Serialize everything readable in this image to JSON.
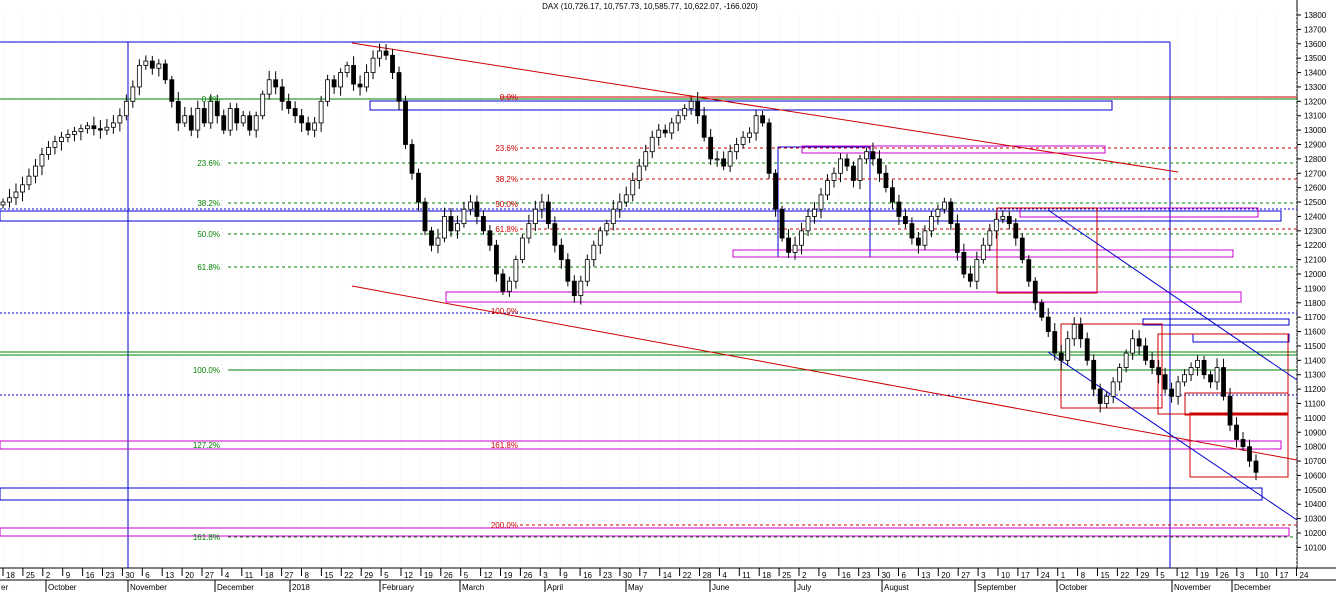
{
  "chart_data": {
    "type": "candlestick",
    "title": "DAX (10,726.17, 10,757.73, 10,585.77, 10,622.07, -166.020)",
    "ylim": [
      10100,
      13900
    ],
    "y_ticks": [
      10100,
      10200,
      10300,
      10400,
      10500,
      10600,
      10700,
      10800,
      10900,
      11000,
      11100,
      11200,
      11300,
      11400,
      11500,
      11600,
      11700,
      11800,
      11900,
      12000,
      12100,
      12200,
      12300,
      12400,
      12500,
      12600,
      12700,
      12800,
      12900,
      13000,
      13100,
      13200,
      13300,
      13400,
      13500,
      13600,
      13700,
      13800
    ],
    "date_ticks": [
      "18",
      "25",
      "2",
      "9",
      "16",
      "23",
      "30",
      "6",
      "13",
      "20",
      "27",
      "4",
      "11",
      "18",
      "27",
      "8",
      "15",
      "22",
      "29",
      "5",
      "12",
      "19",
      "26",
      "5",
      "12",
      "19",
      "26",
      "3",
      "9",
      "16",
      "23",
      "30",
      "7",
      "14",
      "22",
      "28",
      "4",
      "11",
      "18",
      "25",
      "2",
      "9",
      "16",
      "23",
      "30",
      "6",
      "13",
      "20",
      "27",
      "3",
      "10",
      "17",
      "24",
      "1",
      "8",
      "15",
      "22",
      "29",
      "5",
      "12",
      "19",
      "26",
      "3",
      "10",
      "17",
      "24"
    ],
    "month_labels": [
      "October",
      "November",
      "December",
      "2018",
      "February",
      "March",
      "April",
      "May",
      "June",
      "July",
      "August",
      "September",
      "October",
      "November",
      "December"
    ],
    "left_edge_label": "er",
    "fib_left": [
      "0.0%",
      "23.6%",
      "38.2%",
      "50.0%",
      "61.8%",
      "100.0%",
      "127.2%",
      "161.8%"
    ],
    "fib_right": [
      "0.0%",
      "23.6%",
      "38.2%",
      "50.0%",
      "61.8%",
      "100.0%",
      "161.8%",
      "200.0%"
    ],
    "colors": {
      "fib_left": "#008000",
      "fib_right": "#cc0000",
      "blue": "#0000cc",
      "magenta": "#cc00cc",
      "red_line": "#cc0000",
      "candle": "#000000"
    },
    "closes": [
      12500,
      12530,
      12570,
      12620,
      12680,
      12750,
      12830,
      12880,
      12920,
      12950,
      12970,
      12990,
      13010,
      13030,
      13010,
      13000,
      13020,
      13050,
      13100,
      13200,
      13300,
      13450,
      13480,
      13430,
      13460,
      13350,
      13200,
      13050,
      13100,
      13000,
      13150,
      13050,
      13200,
      13100,
      13000,
      13150,
      13050,
      13100,
      13000,
      13100,
      13250,
      13350,
      13300,
      13200,
      13150,
      13100,
      13050,
      13000,
      13050,
      13200,
      13350,
      13300,
      13400,
      13450,
      13320,
      13300,
      13400,
      13500,
      13550,
      13520,
      13400,
      13200,
      12900,
      12700,
      12500,
      12300,
      12200,
      12250,
      12400,
      12300,
      12350,
      12450,
      12500,
      12400,
      12300,
      12200,
      12000,
      11880,
      11950,
      12100,
      12250,
      12350,
      12450,
      12500,
      12350,
      12200,
      12100,
      11950,
      11850,
      11950,
      12100,
      12200,
      12300,
      12350,
      12450,
      12500,
      12550,
      12650,
      12750,
      12850,
      12950,
      13000,
      12980,
      13050,
      13100,
      13150,
      13200,
      13100,
      12950,
      12800,
      12800,
      12750,
      12850,
      12900,
      12950,
      12980,
      13100,
      13050,
      12700,
      12450,
      12250,
      12150,
      12200,
      12300,
      12400,
      12450,
      12550,
      12650,
      12700,
      12800,
      12750,
      12650,
      12800,
      12850,
      12800,
      12700,
      12600,
      12500,
      12400,
      12350,
      12250,
      12200,
      12300,
      12400,
      12450,
      12500,
      12350,
      12150,
      12000,
      11950,
      12100,
      12200,
      12300,
      12380,
      12400,
      12350,
      12250,
      12100,
      11950,
      11800,
      11700,
      11600,
      11450,
      11400,
      11550,
      11650,
      11550,
      11400,
      11200,
      11100,
      11150,
      11250,
      11350,
      11450,
      11550,
      11500,
      11400,
      11350,
      11300,
      11200,
      11150,
      11250,
      11300,
      11350,
      11400,
      11300,
      11250,
      11350,
      11150,
      10950,
      10850,
      10800,
      10700,
      10622
    ]
  },
  "fib_right_on_line": "161.8%"
}
